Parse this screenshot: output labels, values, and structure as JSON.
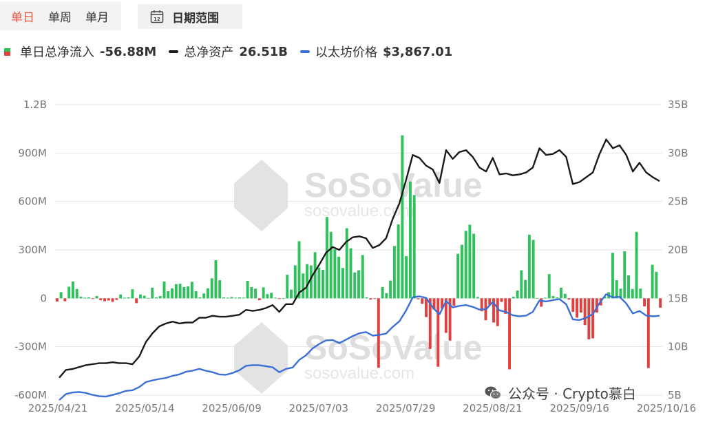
{
  "tabs": [
    {
      "label": "单日",
      "active": true
    },
    {
      "label": "单周",
      "active": false
    },
    {
      "label": "单月",
      "active": false
    }
  ],
  "date_range": {
    "label": "日期范围",
    "icon": "calendar-icon",
    "icon_text": "12"
  },
  "legend": {
    "flow": {
      "label": "单日总净流入",
      "value": "-56.88M"
    },
    "assets": {
      "label": "总净资产",
      "value": "26.51B",
      "color": "#1a1a1a"
    },
    "price": {
      "label": "以太坊价格",
      "value": "$3,867.01",
      "color": "#3b6fd6"
    }
  },
  "watermark": {
    "brand": "SoSoValue",
    "url": "sosovalue.com"
  },
  "footer": {
    "wechat_text": "公众号 · Crypto慕白",
    "wechat_icon": "wechat-icon"
  },
  "colors": {
    "inflow": "#2ec15c",
    "outflow": "#e04040",
    "assets": "#1a1a1a",
    "price": "#3b6fd6",
    "grid": "#e5e5e5"
  },
  "chart_data": {
    "type": "bar+line",
    "left_axis": {
      "ticks": [
        "1.2B",
        "900M",
        "600M",
        "300M",
        "0",
        "-300M",
        "-600M"
      ],
      "range": [
        -600,
        1200
      ],
      "unit": "M"
    },
    "right_axis": {
      "ticks": [
        "35B",
        "30B",
        "25B",
        "20B",
        "15B",
        "10B",
        "5B"
      ],
      "range": [
        5,
        35
      ],
      "unit": "B"
    },
    "x_tick_labels": [
      "2025/04/21",
      "2025/05/14",
      "2025/06/09",
      "2025/07/03",
      "2025/07/29",
      "2025/08/21",
      "2025/09/16",
      "2025/10/16"
    ],
    "bars_M": [
      -20,
      38,
      -18,
      72,
      104,
      58,
      10,
      4,
      6,
      -4,
      14,
      -12,
      -18,
      -14,
      -22,
      -10,
      24,
      4,
      6,
      56,
      -30,
      24,
      16,
      2,
      66,
      6,
      14,
      104,
      44,
      62,
      88,
      90,
      70,
      74,
      102,
      44,
      6,
      30,
      62,
      124,
      236,
      112,
      6,
      4,
      8,
      4,
      6,
      4,
      108,
      70,
      60,
      -12,
      68,
      26,
      34,
      4,
      -4,
      0,
      146,
      54,
      204,
      354,
      154,
      212,
      204,
      286,
      190,
      176,
      504,
      412,
      304,
      258,
      188,
      434,
      310,
      160,
      174,
      268,
      6,
      -8,
      -4,
      -430,
      70,
      32,
      110,
      324,
      458,
      1010,
      262,
      724,
      640,
      -6,
      -34,
      -116,
      -314,
      -70,
      -424,
      -64,
      -214,
      -262,
      -46,
      276,
      332,
      418,
      456,
      400,
      8,
      -80,
      -136,
      -42,
      -150,
      -172,
      -22,
      -96,
      -440,
      10,
      48,
      174,
      114,
      394,
      362,
      2,
      -52,
      4,
      150,
      14,
      6,
      66,
      28,
      -8,
      -84,
      -120,
      -88,
      -166,
      -254,
      -248,
      -88,
      -44,
      10,
      38,
      282,
      112,
      60,
      292,
      142,
      58,
      412,
      60,
      -50,
      -432,
      208,
      164,
      -58
    ],
    "assets_B": [
      6.8,
      7.6,
      7.7,
      7.9,
      8.1,
      8.2,
      8.3,
      8.3,
      8.4,
      8.3,
      8.3,
      8.2,
      9.0,
      10.5,
      11.4,
      12.1,
      12.4,
      12.6,
      12.4,
      12.5,
      12.5,
      13.0,
      13.0,
      13.2,
      13.1,
      13.1,
      13.2,
      13.3,
      13.8,
      13.7,
      13.8,
      14.0,
      14.3,
      13.6,
      14.4,
      14.4,
      15.6,
      16.1,
      17.4,
      18.5,
      19.7,
      20.3,
      20.0,
      20.8,
      21.3,
      21.4,
      21.2,
      20.2,
      20.5,
      21.2,
      23.2,
      24.8,
      27.2,
      29.8,
      29.5,
      28.7,
      28.3,
      26.9,
      30.3,
      29.4,
      30.1,
      30.3,
      29.6,
      28.5,
      28.1,
      29.5,
      27.8,
      27.9,
      27.7,
      27.8,
      28.0,
      28.5,
      30.5,
      29.8,
      29.9,
      30.3,
      29.6,
      26.8,
      27.0,
      27.5,
      28.0,
      29.9,
      31.4,
      30.5,
      30.8,
      29.8,
      28.1,
      29.0,
      28.0,
      27.5,
      27.1
    ]
  }
}
